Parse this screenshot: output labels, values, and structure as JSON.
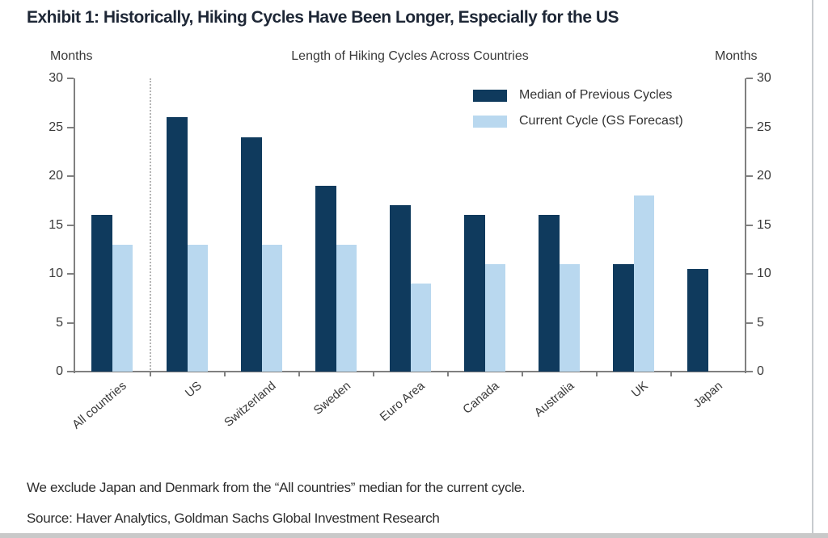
{
  "page": {
    "exhibit_title": "Exhibit 1: Historically, Hiking Cycles Have Been Longer, Especially for the US",
    "footnote": "We exclude Japan and Denmark from the “All countries” median for the current cycle.",
    "source": "Source: Haver Analytics, Goldman Sachs Global Investment Research"
  },
  "chart_data": {
    "type": "bar",
    "title": "Length of Hiking Cycles Across Countries",
    "left_axis_label": "Months",
    "right_axis_label": "Months",
    "categories": [
      "All countries",
      "US",
      "Switzerland",
      "Sweden",
      "Euro Area",
      "Canada",
      "Australia",
      "UK",
      "Japan"
    ],
    "series": [
      {
        "name": "Median of Previous Cycles",
        "color": "#0f3a5d",
        "values": [
          16,
          26,
          24,
          19,
          17,
          16,
          16,
          11,
          10.5
        ]
      },
      {
        "name": "Current Cycle (GS Forecast)",
        "color": "#b9d8ef",
        "values": [
          13,
          13,
          13,
          13,
          9,
          11,
          11,
          18,
          null
        ]
      }
    ],
    "ylim": [
      0,
      30
    ],
    "yticks": [
      0,
      5,
      10,
      15,
      20,
      25,
      30
    ],
    "grid": false,
    "legend_position": "top-right",
    "separator_after_category": "All countries",
    "axis_color": "#808080"
  }
}
